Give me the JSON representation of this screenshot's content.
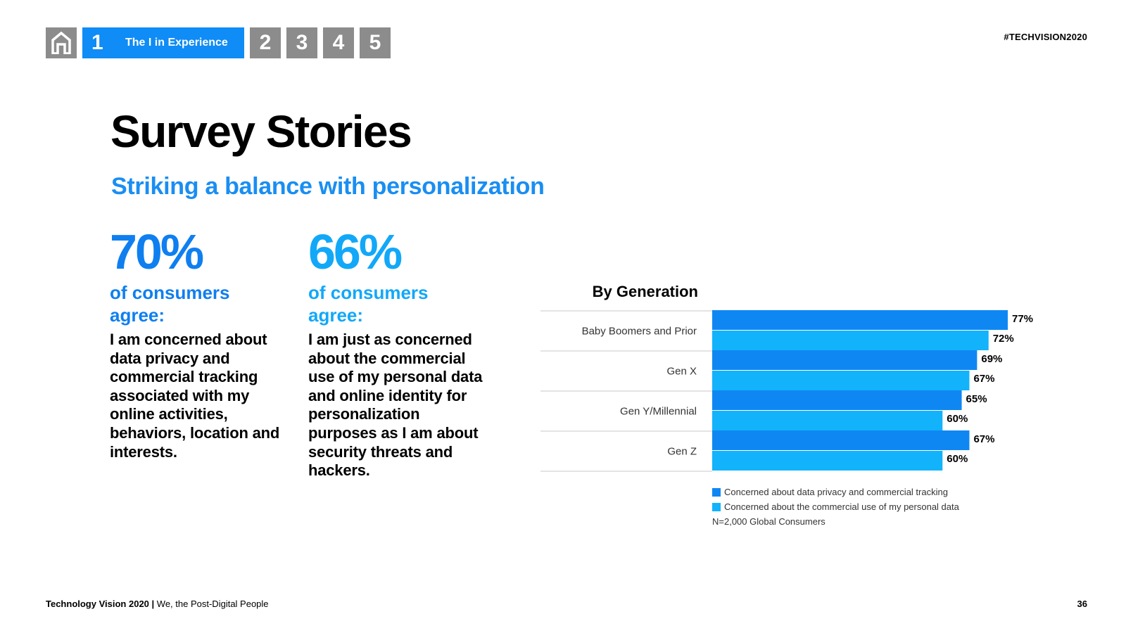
{
  "nav": {
    "home_icon": "home-icon",
    "active_number": "1",
    "active_label": "The I in Experience",
    "other_numbers": [
      "2",
      "3",
      "4",
      "5"
    ]
  },
  "hashtag": "#TECHVISION2020",
  "title": "Survey Stories",
  "subtitle": "Striking a balance with personalization",
  "stats": [
    {
      "value": "70%",
      "sub": "of consumers agree:",
      "body": "I am concerned about data privacy and commercial tracking associated with my online activities, behaviors, location and interests."
    },
    {
      "value": "66%",
      "sub": "of consumers agree:",
      "body": "I am just as concerned about the commercial use of my personal data and online identity for personalization purposes as I am about security threats and hackers."
    }
  ],
  "colors": {
    "series1": "#0f87f3",
    "series2": "#12b3fb",
    "stat1": "#0f7ff0",
    "stat2": "#12a8f8",
    "nav_active": "#0f8cf5",
    "nav_inactive": "#8c8c8c"
  },
  "chart_data": {
    "type": "bar",
    "orientation": "horizontal",
    "title": "By Generation",
    "categories": [
      "Baby Boomers and Prior",
      "Gen X",
      "Gen Y/Millennial",
      "Gen Z"
    ],
    "series": [
      {
        "name": "Concerned about data privacy and commercial tracking",
        "values": [
          77,
          69,
          65,
          67
        ]
      },
      {
        "name": "Concerned about the commercial use of my personal data",
        "values": [
          72,
          67,
          60,
          60
        ]
      }
    ],
    "value_labels": [
      [
        "77%",
        "69%",
        "65%",
        "67%"
      ],
      [
        "72%",
        "67%",
        "60%",
        "60%"
      ]
    ],
    "legend": "bottom",
    "note": "N=2,000 Global Consumers"
  },
  "footer": {
    "left_bold": "Technology Vision 2020",
    "separator": "|",
    "left_text": "We, the Post-Digital People",
    "page_number": "36"
  }
}
